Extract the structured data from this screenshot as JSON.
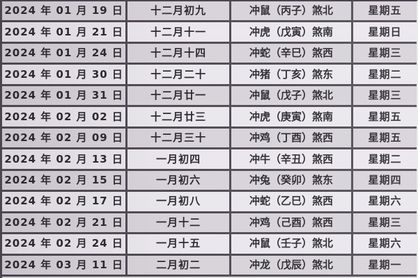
{
  "colors": {
    "border": "#4b4550",
    "row_dark": "#d6d2d8",
    "row_light": "#eae7ec",
    "text": "#26232a"
  },
  "table": {
    "rows": [
      {
        "date": "2024 年 01 月 19 日",
        "lunar": "十二月初九",
        "clash": "冲鼠（丙子）煞北",
        "weekday": "星期五"
      },
      {
        "date": "2024 年 01 月 21 日",
        "lunar": "十二月十一",
        "clash": "冲虎（戊寅）煞南",
        "weekday": "星期日"
      },
      {
        "date": "2024 年 01 月 24 日",
        "lunar": "十二月十四",
        "clash": "冲蛇（辛巳）煞西",
        "weekday": "星期三"
      },
      {
        "date": "2024 年 01 月 30 日",
        "lunar": "十二月二十",
        "clash": "冲猪（丁亥）煞东",
        "weekday": "星期二"
      },
      {
        "date": "2024 年 01 月 31 日",
        "lunar": "十二月廿一",
        "clash": "冲鼠（戊子）煞北",
        "weekday": "星期三"
      },
      {
        "date": "2024 年 02 月 02 日",
        "lunar": "十二月廿三",
        "clash": "冲虎（庚寅）煞南",
        "weekday": "星期五"
      },
      {
        "date": "2024 年 02 月 09 日",
        "lunar": "十二月三十",
        "clash": "冲鸡（丁酉）煞西",
        "weekday": "星期五"
      },
      {
        "date": "2024 年 02 月 13 日",
        "lunar": "一月初四",
        "clash": "冲牛（辛丑）煞西",
        "weekday": "星期二"
      },
      {
        "date": "2024 年 02 月 15 日",
        "lunar": "一月初六",
        "clash": "冲兔（癸卯）煞东",
        "weekday": "星期四"
      },
      {
        "date": "2024 年 02 月 17 日",
        "lunar": "一月初八",
        "clash": "冲蛇（乙巳）煞西",
        "weekday": "星期六"
      },
      {
        "date": "2024 年 02 月 21 日",
        "lunar": "一月十二",
        "clash": "冲鸡（己酉）煞西",
        "weekday": "星期三"
      },
      {
        "date": "2024 年 02 月 24 日",
        "lunar": "一月十五",
        "clash": "冲鼠（壬子）煞北",
        "weekday": "星期六"
      },
      {
        "date": "2024 年 03 月 11 日",
        "lunar": "二月初二",
        "clash": "冲龙（戊辰）煞北",
        "weekday": "星期一"
      }
    ]
  }
}
